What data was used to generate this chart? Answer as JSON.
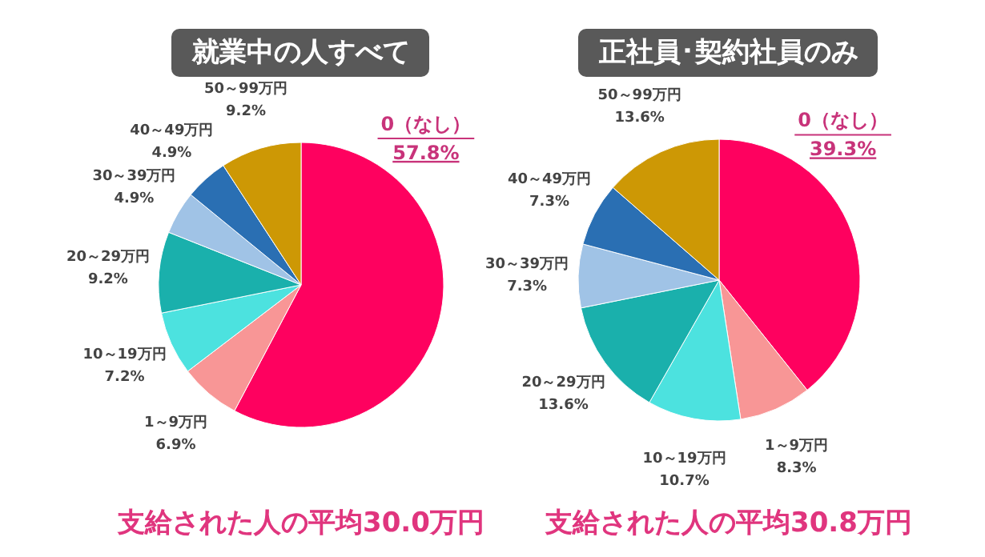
{
  "chart_data": [
    {
      "type": "pie",
      "title": "就業中の人すべて",
      "categories": [
        "0（なし）",
        "1～9万円",
        "10～19万円",
        "20～29万円",
        "30～39万円",
        "40～49万円",
        "50～99万円"
      ],
      "values": [
        57.8,
        6.9,
        7.2,
        9.2,
        4.9,
        4.9,
        9.2
      ],
      "value_labels": [
        "57.8%",
        "6.9%",
        "7.2%",
        "9.2%",
        "4.9%",
        "4.9%",
        "9.2%"
      ],
      "colors": [
        "#fe015f",
        "#f89696",
        "#4ce2df",
        "#1ab0ac",
        "#a0c3e6",
        "#2a6fb3",
        "#cd9805"
      ],
      "annotations": [
        "支給された人の平均30.0万円"
      ]
    },
    {
      "type": "pie",
      "title": "正社員･契約社員のみ",
      "categories": [
        "0（なし）",
        "1～9万円",
        "10～19万円",
        "20～29万円",
        "30～39万円",
        "40～49万円",
        "50～99万円"
      ],
      "values": [
        39.3,
        8.3,
        10.7,
        13.6,
        7.3,
        7.3,
        13.6
      ],
      "value_labels": [
        "39.3%",
        "8.3%",
        "10.7%",
        "13.6%",
        "7.3%",
        "7.3%",
        "13.6%"
      ],
      "colors": [
        "#fe015f",
        "#f89696",
        "#4ce2df",
        "#1ab0ac",
        "#a0c3e6",
        "#2a6fb3",
        "#cd9805"
      ],
      "annotations": [
        "支給された人の平均30.8万円"
      ]
    }
  ]
}
